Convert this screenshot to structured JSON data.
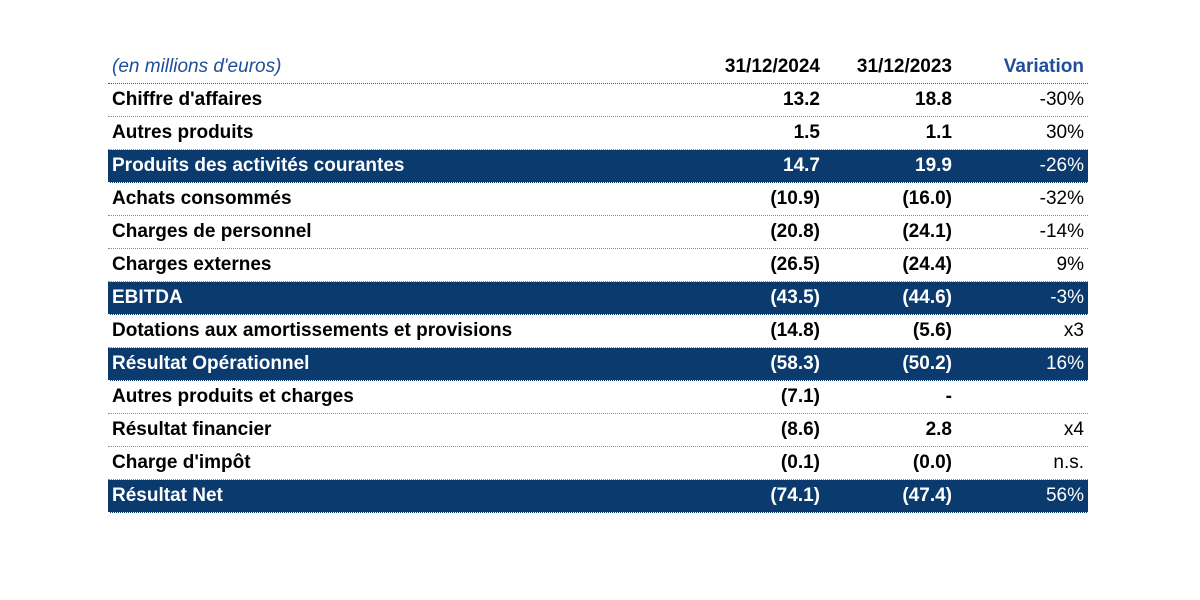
{
  "table": {
    "header": {
      "unit": "(en millions d'euros)",
      "col_2024": "31/12/2024",
      "col_2023": "31/12/2023",
      "col_variation": "Variation"
    },
    "rows": [
      {
        "label": "Chiffre d'affaires",
        "y2024": "13.2",
        "y2023": "18.8",
        "variation": "-30%",
        "highlight": false
      },
      {
        "label": "Autres produits",
        "y2024": "1.5",
        "y2023": "1.1",
        "variation": "30%",
        "highlight": false
      },
      {
        "label": "Produits des activités courantes",
        "y2024": "14.7",
        "y2023": "19.9",
        "variation": "-26%",
        "highlight": true
      },
      {
        "label": "Achats consommés",
        "y2024": "(10.9)",
        "y2023": "(16.0)",
        "variation": "-32%",
        "highlight": false
      },
      {
        "label": "Charges de personnel",
        "y2024": "(20.8)",
        "y2023": "(24.1)",
        "variation": "-14%",
        "highlight": false
      },
      {
        "label": "Charges externes",
        "y2024": "(26.5)",
        "y2023": "(24.4)",
        "variation": "9%",
        "highlight": false
      },
      {
        "label": "EBITDA",
        "y2024": "(43.5)",
        "y2023": "(44.6)",
        "variation": "-3%",
        "highlight": true
      },
      {
        "label": "Dotations aux amortissements et provisions",
        "y2024": "(14.8)",
        "y2023": "(5.6)",
        "variation": "x3",
        "highlight": false
      },
      {
        "label": "Résultat Opérationnel",
        "y2024": "(58.3)",
        "y2023": "(50.2)",
        "variation": "16%",
        "highlight": true
      },
      {
        "label": "Autres produits et charges",
        "y2024": "(7.1)",
        "y2023": "-",
        "variation": "",
        "highlight": false
      },
      {
        "label": "Résultat financier",
        "y2024": "(8.6)",
        "y2023": "2.8",
        "variation": "x4",
        "highlight": false
      },
      {
        "label": "Charge d'impôt",
        "y2024": "(0.1)",
        "y2023": "(0.0)",
        "variation": "n.s.",
        "highlight": false
      },
      {
        "label": "Résultat Net",
        "y2024": "(74.1)",
        "y2023": "(47.4)",
        "variation": "56%",
        "highlight": true
      }
    ]
  },
  "colors": {
    "highlight_background": "#0a3a6e",
    "header_accent": "#1f4e9a"
  }
}
